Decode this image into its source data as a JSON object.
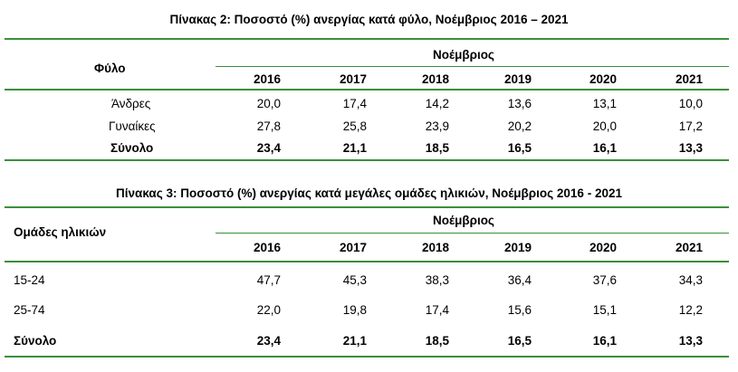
{
  "table2": {
    "title": "Πίνακας 2: Ποσοστό (%) ανεργίας κατά φύλο, Νοέμβριος 2016 – 2021",
    "row_header": "Φύλο",
    "group_header": "Νοέμβριος",
    "years": [
      "2016",
      "2017",
      "2018",
      "2019",
      "2020",
      "2021"
    ],
    "rows": [
      {
        "label": "Άνδρες",
        "values": [
          "20,0",
          "17,4",
          "14,2",
          "13,6",
          "13,1",
          "10,0"
        ]
      },
      {
        "label": "Γυναίκες",
        "values": [
          "27,8",
          "25,8",
          "23,9",
          "20,2",
          "20,0",
          "17,2"
        ]
      },
      {
        "label": "Σύνολο",
        "values": [
          "23,4",
          "21,1",
          "18,5",
          "16,5",
          "16,1",
          "13,3"
        ]
      }
    ]
  },
  "table3": {
    "title": "Πίνακας 3: Ποσοστό (%) ανεργίας κατά μεγάλες ομάδες ηλικιών, Νοέμβριος 2016 - 2021",
    "row_header": "Ομάδες ηλικιών",
    "group_header": "Νοέμβριος",
    "years": [
      "2016",
      "2017",
      "2018",
      "2019",
      "2020",
      "2021"
    ],
    "rows": [
      {
        "label": "15-24",
        "values": [
          "47,7",
          "45,3",
          "38,3",
          "36,4",
          "37,6",
          "34,3"
        ]
      },
      {
        "label": "25-74",
        "values": [
          "22,0",
          "19,8",
          "17,4",
          "15,6",
          "15,1",
          "12,2"
        ]
      },
      {
        "label": "Σύνολο",
        "values": [
          "23,4",
          "21,1",
          "18,5",
          "16,5",
          "16,1",
          "13,3"
        ]
      }
    ]
  }
}
